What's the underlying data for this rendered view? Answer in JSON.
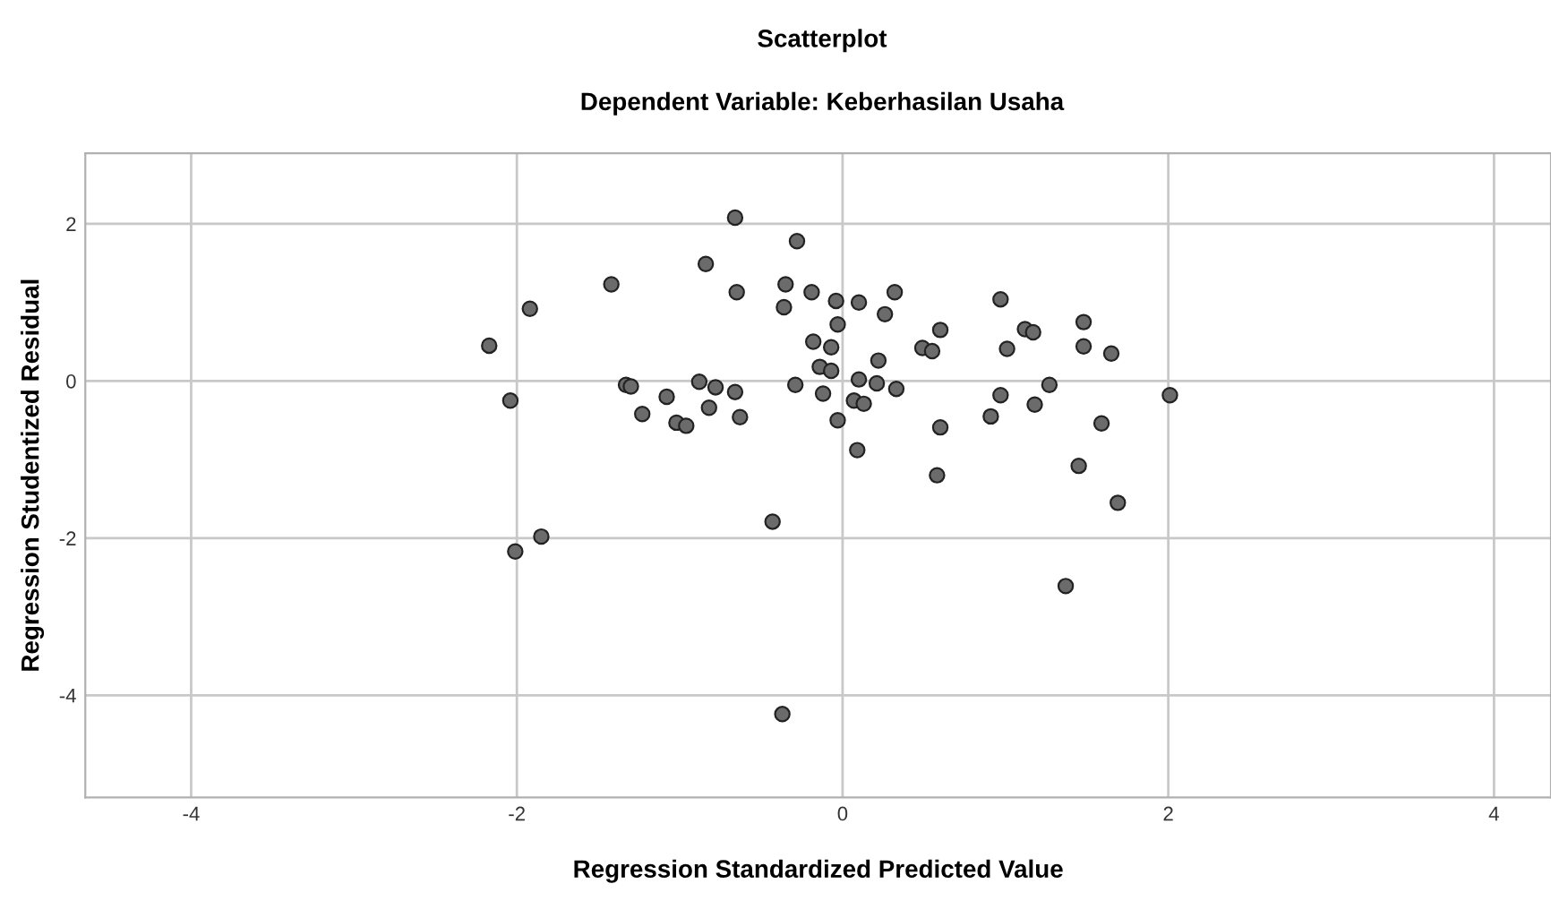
{
  "chart_data": {
    "type": "scatter",
    "title": "Scatterplot",
    "subtitle": "Dependent Variable: Keberhasilan Usaha",
    "xlabel": "Regression Standardized Predicted Value",
    "ylabel": "Regression Studentized Residual",
    "x": [
      -0.66,
      -0.84,
      -1.42,
      -0.65,
      -1.92,
      -2.17,
      -2.04,
      -1.33,
      -1.3,
      -1.08,
      -0.88,
      -0.78,
      -0.66,
      -1.23,
      -0.82,
      -1.02,
      -0.96,
      -0.63,
      -0.43,
      -1.85,
      -2.01,
      -0.28,
      -0.35,
      -0.36,
      -0.19,
      -0.04,
      0.1,
      0.32,
      0.26,
      -0.03,
      -0.18,
      -0.07,
      -0.14,
      -0.07,
      0.22,
      -0.29,
      -0.12,
      0.1,
      0.21,
      0.33,
      0.07,
      0.13,
      -0.03,
      0.09,
      0.6,
      0.49,
      0.55,
      0.6,
      0.58,
      0.97,
      1.01,
      0.97,
      0.91,
      1.12,
      1.17,
      1.27,
      1.18,
      1.48,
      1.48,
      1.65,
      1.59,
      1.45,
      1.69,
      2.01,
      1.37,
      -0.37
    ],
    "values": [
      2.08,
      1.49,
      1.23,
      1.13,
      0.92,
      0.45,
      -0.25,
      -0.05,
      -0.07,
      -0.2,
      -0.01,
      -0.08,
      -0.14,
      -0.42,
      -0.34,
      -0.53,
      -0.57,
      -0.46,
      -1.79,
      -1.98,
      -2.17,
      1.78,
      1.23,
      0.94,
      1.13,
      1.02,
      1.0,
      1.13,
      0.85,
      0.72,
      0.5,
      0.43,
      0.18,
      0.13,
      0.26,
      -0.05,
      -0.16,
      0.02,
      -0.03,
      -0.1,
      -0.25,
      -0.29,
      -0.5,
      -0.88,
      0.65,
      0.42,
      0.38,
      -0.59,
      -1.2,
      1.04,
      0.41,
      -0.18,
      -0.45,
      0.66,
      0.62,
      -0.05,
      -0.3,
      0.75,
      0.44,
      0.35,
      -0.54,
      -1.08,
      -1.55,
      -0.18,
      -2.61,
      -4.24
    ],
    "color": "#6b6b6b",
    "marker": "circle",
    "grid": true,
    "xlim": [
      -4.65,
      4.35
    ],
    "ylim": [
      -5.3,
      2.9
    ],
    "xticks": [
      {
        "value": -4,
        "label": "-4"
      },
      {
        "value": -2,
        "label": "-2"
      },
      0,
      2,
      4
    ],
    "yticks": [
      {
        "value": -4,
        "label": "-4"
      },
      {
        "value": -2,
        "label": "-2"
      },
      0,
      2
    ]
  }
}
